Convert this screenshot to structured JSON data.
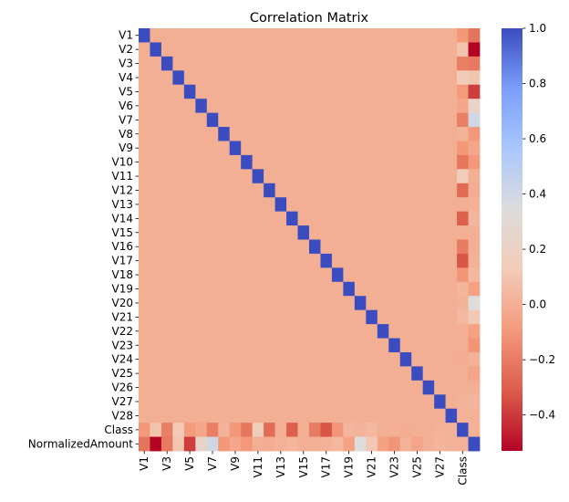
{
  "chart_data": {
    "type": "heatmap",
    "title": "Correlation Matrix",
    "labels": [
      "V1",
      "V2",
      "V3",
      "V4",
      "V5",
      "V6",
      "V7",
      "V8",
      "V9",
      "V10",
      "V11",
      "V12",
      "V13",
      "V14",
      "V15",
      "V16",
      "V17",
      "V18",
      "V19",
      "V20",
      "V21",
      "V22",
      "V23",
      "V24",
      "V25",
      "V26",
      "V27",
      "V28",
      "Class",
      "NormalizedAmount"
    ],
    "x_tick_labels": [
      "V1",
      "V3",
      "V5",
      "V7",
      "V9",
      "V11",
      "V13",
      "V15",
      "V17",
      "V19",
      "V21",
      "V23",
      "V25",
      "V27",
      "Class"
    ],
    "class_correlations": [
      -0.1,
      0.09,
      -0.19,
      0.13,
      -0.09,
      -0.04,
      -0.19,
      0.02,
      -0.1,
      -0.22,
      0.15,
      -0.26,
      0.0,
      -0.3,
      0.0,
      -0.2,
      -0.33,
      -0.11,
      0.03,
      0.02,
      0.04,
      0.0,
      0.0,
      -0.01,
      0.0,
      0.0,
      0.02,
      0.01,
      1.0,
      0.01
    ],
    "amount_correlations": [
      -0.23,
      -0.53,
      -0.21,
      0.1,
      -0.39,
      0.22,
      0.4,
      -0.1,
      -0.04,
      -0.1,
      0.0,
      -0.01,
      0.01,
      0.03,
      -0.0,
      -0.0,
      0.01,
      0.04,
      -0.06,
      0.34,
      0.11,
      -0.06,
      -0.11,
      0.01,
      -0.05,
      -0.0,
      0.03,
      0.01,
      0.01,
      1.0
    ],
    "colorbar": {
      "min": -0.53,
      "max": 1.0,
      "ticks": [
        1.0,
        0.8,
        0.6,
        0.4,
        0.2,
        0.0,
        -0.2,
        -0.4
      ],
      "tick_labels": [
        "1.0",
        "0.8",
        "0.6",
        "0.4",
        "0.2",
        "0.0",
        "−0.2",
        "−0.4"
      ],
      "colormap": "coolwarm_r",
      "stops": [
        "#b40426",
        "#dc5d4a",
        "#f49a7b",
        "#f2cbb7",
        "#dddcdc",
        "#aac7fd",
        "#7b9ff9",
        "#3b4cc0"
      ]
    }
  }
}
